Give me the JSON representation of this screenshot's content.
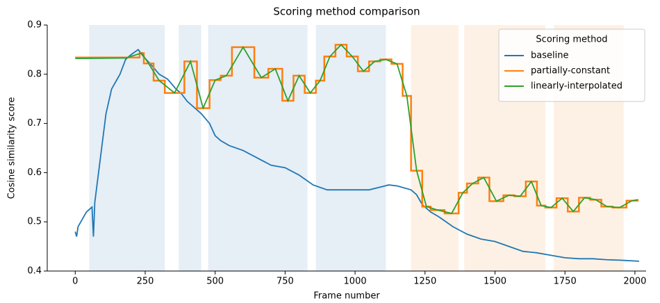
{
  "chart_data": {
    "type": "line",
    "title": "Scoring method comparison",
    "x_label": "Frame number",
    "y_label": "Cosine similarity score",
    "xlim": [
      -100,
      2040
    ],
    "ylim": [
      0.4,
      0.9
    ],
    "xticks": [
      0,
      250,
      500,
      750,
      1000,
      1250,
      1500,
      1750,
      2000
    ],
    "yticks": [
      0.4,
      0.5,
      0.6,
      0.7,
      0.8,
      0.9
    ],
    "legend_title": "Scoring method",
    "legend_position": "upper right",
    "spans": [
      {
        "x": [
          50,
          320
        ],
        "color": "#e6eef6"
      },
      {
        "x": [
          370,
          450
        ],
        "color": "#e6eef6"
      },
      {
        "x": [
          475,
          830
        ],
        "color": "#e6eef6"
      },
      {
        "x": [
          860,
          1110
        ],
        "color": "#e6eef6"
      },
      {
        "x": [
          1200,
          1370
        ],
        "color": "#fdf1e5"
      },
      {
        "x": [
          1390,
          1680
        ],
        "color": "#fdf1e5"
      },
      {
        "x": [
          1710,
          1960
        ],
        "color": "#fdf1e5"
      }
    ],
    "series": [
      {
        "name": "baseline",
        "color": "#1f77b4",
        "drawstyle": "default",
        "x": [
          0,
          5,
          10,
          20,
          40,
          60,
          65,
          70,
          90,
          110,
          130,
          150,
          160,
          180,
          200,
          225,
          245,
          270,
          300,
          330,
          360,
          380,
          400,
          420,
          450,
          480,
          500,
          520,
          550,
          600,
          650,
          700,
          750,
          800,
          850,
          900,
          950,
          1000,
          1050,
          1100,
          1120,
          1150,
          1200,
          1220,
          1240,
          1270,
          1300,
          1350,
          1400,
          1450,
          1500,
          1550,
          1600,
          1650,
          1700,
          1750,
          1800,
          1850,
          1900,
          1950,
          2015
        ],
        "values": [
          0.48,
          0.47,
          0.49,
          0.5,
          0.52,
          0.53,
          0.47,
          0.54,
          0.63,
          0.72,
          0.77,
          0.79,
          0.8,
          0.83,
          0.84,
          0.85,
          0.835,
          0.82,
          0.8,
          0.79,
          0.77,
          0.76,
          0.745,
          0.735,
          0.72,
          0.7,
          0.675,
          0.665,
          0.655,
          0.645,
          0.63,
          0.615,
          0.61,
          0.595,
          0.575,
          0.565,
          0.565,
          0.565,
          0.565,
          0.572,
          0.575,
          0.573,
          0.565,
          0.555,
          0.535,
          0.52,
          0.51,
          0.49,
          0.475,
          0.465,
          0.46,
          0.45,
          0.44,
          0.437,
          0.432,
          0.427,
          0.425,
          0.425,
          0.423,
          0.422,
          0.42
        ]
      },
      {
        "name": "partially-constant",
        "color": "#ff7f0e",
        "drawstyle": "steps-post",
        "x": [
          0,
          230,
          245,
          280,
          320,
          390,
          435,
          480,
          520,
          560,
          640,
          690,
          740,
          780,
          820,
          860,
          890,
          930,
          970,
          1010,
          1050,
          1090,
          1130,
          1170,
          1200,
          1240,
          1270,
          1320,
          1370,
          1400,
          1440,
          1480,
          1530,
          1570,
          1610,
          1650,
          1680,
          1720,
          1760,
          1800,
          1840,
          1880,
          1920,
          1970,
          2010
        ],
        "values": [
          0.834,
          0.843,
          0.822,
          0.787,
          0.762,
          0.826,
          0.731,
          0.788,
          0.797,
          0.855,
          0.793,
          0.811,
          0.746,
          0.797,
          0.762,
          0.787,
          0.836,
          0.86,
          0.836,
          0.806,
          0.826,
          0.83,
          0.821,
          0.756,
          0.604,
          0.531,
          0.524,
          0.517,
          0.559,
          0.578,
          0.59,
          0.542,
          0.554,
          0.552,
          0.582,
          0.533,
          0.529,
          0.548,
          0.521,
          0.549,
          0.545,
          0.531,
          0.529,
          0.543,
          0.546
        ]
      },
      {
        "name": "linearly-interpolated",
        "color": "#2ca02c",
        "drawstyle": "default",
        "x": [
          0,
          180,
          237,
          262,
          300,
          355,
          412,
          457,
          500,
          540,
          600,
          665,
          715,
          760,
          800,
          840,
          875,
          910,
          950,
          990,
          1030,
          1070,
          1110,
          1150,
          1185,
          1220,
          1255,
          1295,
          1345,
          1385,
          1420,
          1460,
          1505,
          1550,
          1590,
          1630,
          1665,
          1700,
          1740,
          1780,
          1820,
          1860,
          1900,
          1945,
          1990,
          2010
        ],
        "values": [
          0.832,
          0.833,
          0.843,
          0.822,
          0.787,
          0.762,
          0.826,
          0.731,
          0.788,
          0.797,
          0.855,
          0.793,
          0.811,
          0.746,
          0.797,
          0.762,
          0.787,
          0.836,
          0.86,
          0.836,
          0.806,
          0.826,
          0.83,
          0.821,
          0.756,
          0.604,
          0.531,
          0.524,
          0.517,
          0.559,
          0.578,
          0.59,
          0.542,
          0.554,
          0.552,
          0.582,
          0.533,
          0.529,
          0.548,
          0.521,
          0.549,
          0.545,
          0.531,
          0.529,
          0.543,
          0.545
        ]
      }
    ]
  }
}
